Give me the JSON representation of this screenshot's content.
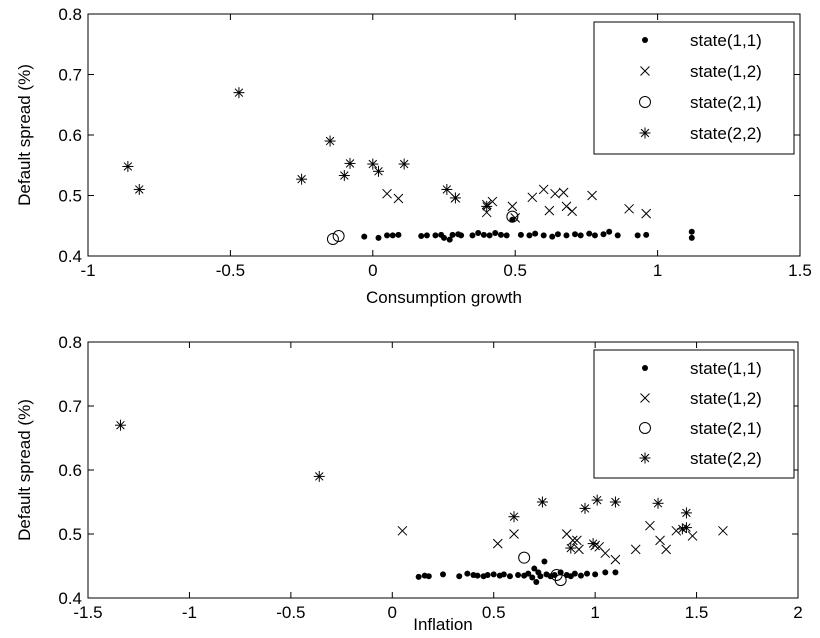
{
  "chart_data": [
    {
      "type": "scatter",
      "xlabel": "Consumption growth",
      "ylabel": "Default spread (%)",
      "xlim": [
        -1,
        1.5
      ],
      "ylim": [
        0.4,
        0.8
      ],
      "xticks": [
        "-1",
        "-0.5",
        "0",
        "0.5",
        "1",
        "1.5"
      ],
      "yticks": [
        "0.4",
        "0.5",
        "0.6",
        "0.7",
        "0.8"
      ],
      "legend_position": "top-right",
      "grid": false,
      "series": [
        {
          "name": "state(1,1)",
          "marker": "dot",
          "points": [
            [
              -0.03,
              0.432
            ],
            [
              0.02,
              0.43
            ],
            [
              0.05,
              0.434
            ],
            [
              0.07,
              0.434
            ],
            [
              0.09,
              0.435
            ],
            [
              0.17,
              0.433
            ],
            [
              0.19,
              0.434
            ],
            [
              0.22,
              0.434
            ],
            [
              0.24,
              0.435
            ],
            [
              0.25,
              0.43
            ],
            [
              0.27,
              0.427
            ],
            [
              0.28,
              0.435
            ],
            [
              0.3,
              0.436
            ],
            [
              0.31,
              0.434
            ],
            [
              0.35,
              0.434
            ],
            [
              0.37,
              0.438
            ],
            [
              0.39,
              0.435
            ],
            [
              0.41,
              0.434
            ],
            [
              0.43,
              0.438
            ],
            [
              0.45,
              0.435
            ],
            [
              0.47,
              0.434
            ],
            [
              0.49,
              0.46
            ],
            [
              0.52,
              0.435
            ],
            [
              0.55,
              0.434
            ],
            [
              0.57,
              0.437
            ],
            [
              0.6,
              0.434
            ],
            [
              0.63,
              0.432
            ],
            [
              0.65,
              0.436
            ],
            [
              0.68,
              0.434
            ],
            [
              0.71,
              0.436
            ],
            [
              0.73,
              0.434
            ],
            [
              0.76,
              0.437
            ],
            [
              0.78,
              0.434
            ],
            [
              0.81,
              0.436
            ],
            [
              0.83,
              0.44
            ],
            [
              0.86,
              0.434
            ],
            [
              0.93,
              0.434
            ],
            [
              0.96,
              0.435
            ],
            [
              1.12,
              0.44
            ],
            [
              1.12,
              0.43
            ]
          ]
        },
        {
          "name": "state(1,2)",
          "marker": "cross",
          "points": [
            [
              0.05,
              0.503
            ],
            [
              0.09,
              0.495
            ],
            [
              0.29,
              0.496
            ],
            [
              0.4,
              0.485
            ],
            [
              0.42,
              0.49
            ],
            [
              0.4,
              0.472
            ],
            [
              0.49,
              0.482
            ],
            [
              0.5,
              0.463
            ],
            [
              0.56,
              0.497
            ],
            [
              0.6,
              0.51
            ],
            [
              0.62,
              0.475
            ],
            [
              0.64,
              0.503
            ],
            [
              0.67,
              0.505
            ],
            [
              0.68,
              0.482
            ],
            [
              0.7,
              0.474
            ],
            [
              0.77,
              0.5
            ],
            [
              0.9,
              0.478
            ],
            [
              0.96,
              0.47
            ]
          ]
        },
        {
          "name": "state(2,1)",
          "marker": "circle",
          "points": [
            [
              -0.14,
              0.428
            ],
            [
              -0.12,
              0.433
            ],
            [
              0.49,
              0.465
            ]
          ]
        },
        {
          "name": "state(2,2)",
          "marker": "asterisk",
          "points": [
            [
              -0.86,
              0.548
            ],
            [
              -0.82,
              0.51
            ],
            [
              -0.47,
              0.67
            ],
            [
              -0.25,
              0.527
            ],
            [
              -0.15,
              0.59
            ],
            [
              -0.1,
              0.533
            ],
            [
              -0.08,
              0.553
            ],
            [
              0.0,
              0.552
            ],
            [
              0.02,
              0.54
            ],
            [
              0.11,
              0.552
            ],
            [
              0.26,
              0.51
            ],
            [
              0.29,
              0.496
            ],
            [
              0.4,
              0.482
            ]
          ]
        }
      ]
    },
    {
      "type": "scatter",
      "xlabel": "Inflation",
      "ylabel": "Default spread (%)",
      "xlim": [
        -1.5,
        2
      ],
      "ylim": [
        0.4,
        0.8
      ],
      "xticks": [
        "-1.5",
        "-1",
        "-0.5",
        "0",
        "0.5",
        "1",
        "1.5",
        "2"
      ],
      "yticks": [
        "0.4",
        "0.5",
        "0.6",
        "0.7",
        "0.8"
      ],
      "legend_position": "top-right",
      "grid": false,
      "series": [
        {
          "name": "state(1,1)",
          "marker": "dot",
          "points": [
            [
              0.13,
              0.433
            ],
            [
              0.16,
              0.435
            ],
            [
              0.18,
              0.434
            ],
            [
              0.25,
              0.437
            ],
            [
              0.33,
              0.434
            ],
            [
              0.37,
              0.438
            ],
            [
              0.4,
              0.436
            ],
            [
              0.42,
              0.435
            ],
            [
              0.45,
              0.434
            ],
            [
              0.47,
              0.436
            ],
            [
              0.5,
              0.437
            ],
            [
              0.53,
              0.435
            ],
            [
              0.55,
              0.437
            ],
            [
              0.58,
              0.434
            ],
            [
              0.62,
              0.436
            ],
            [
              0.65,
              0.435
            ],
            [
              0.67,
              0.438
            ],
            [
              0.69,
              0.432
            ],
            [
              0.7,
              0.446
            ],
            [
              0.72,
              0.44
            ],
            [
              0.73,
              0.434
            ],
            [
              0.75,
              0.457
            ],
            [
              0.76,
              0.437
            ],
            [
              0.78,
              0.434
            ],
            [
              0.8,
              0.436
            ],
            [
              0.83,
              0.44
            ],
            [
              0.86,
              0.436
            ],
            [
              0.88,
              0.434
            ],
            [
              0.9,
              0.438
            ],
            [
              0.93,
              0.435
            ],
            [
              0.96,
              0.438
            ],
            [
              1.0,
              0.437
            ],
            [
              1.05,
              0.44
            ],
            [
              1.1,
              0.44
            ],
            [
              0.71,
              0.425
            ]
          ]
        },
        {
          "name": "state(1,2)",
          "marker": "cross",
          "points": [
            [
              0.05,
              0.505
            ],
            [
              0.52,
              0.485
            ],
            [
              0.6,
              0.5
            ],
            [
              0.86,
              0.5
            ],
            [
              0.89,
              0.49
            ],
            [
              0.91,
              0.49
            ],
            [
              1.0,
              0.482
            ],
            [
              1.02,
              0.48
            ],
            [
              1.05,
              0.47
            ],
            [
              1.2,
              0.476
            ],
            [
              1.27,
              0.513
            ],
            [
              1.32,
              0.49
            ],
            [
              1.35,
              0.476
            ],
            [
              1.48,
              0.497
            ],
            [
              1.63,
              0.505
            ],
            [
              0.92,
              0.476
            ],
            [
              1.1,
              0.46
            ],
            [
              1.4,
              0.505
            ]
          ]
        },
        {
          "name": "state(2,1)",
          "marker": "circle",
          "points": [
            [
              0.65,
              0.463
            ],
            [
              0.81,
              0.436
            ],
            [
              0.83,
              0.428
            ]
          ]
        },
        {
          "name": "state(2,2)",
          "marker": "asterisk",
          "points": [
            [
              -1.34,
              0.67
            ],
            [
              -0.36,
              0.59
            ],
            [
              0.6,
              0.527
            ],
            [
              0.74,
              0.55
            ],
            [
              0.95,
              0.54
            ],
            [
              1.01,
              0.553
            ],
            [
              1.1,
              0.55
            ],
            [
              1.31,
              0.548
            ],
            [
              1.43,
              0.508
            ],
            [
              1.45,
              0.533
            ],
            [
              1.45,
              0.51
            ],
            [
              0.99,
              0.485
            ],
            [
              0.88,
              0.478
            ]
          ]
        }
      ]
    }
  ]
}
